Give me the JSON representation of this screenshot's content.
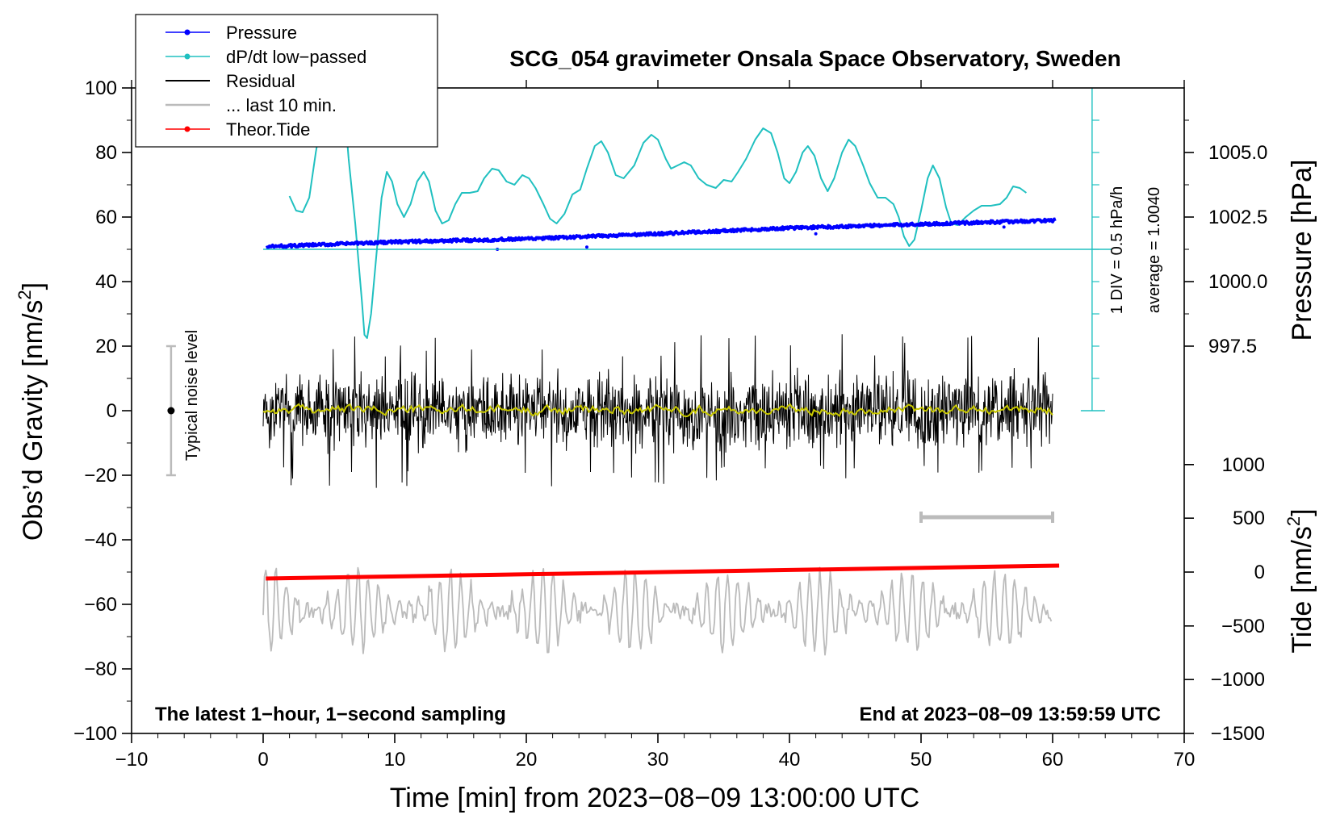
{
  "chart_data": {
    "type": "line",
    "title": "SCG_054 gravimeter Onsala Space Observatory, Sweden",
    "xlabel": "Time [min] from 2023−08−09 13:00:00 UTC",
    "ylabel_left": "Obs’d Gravity [nm/s",
    "ylabel_left_sup": "2",
    "ylabel_left_close": "]",
    "ylabel_pressure": "Pressure [hPa]",
    "ylabel_tide": "Tide [nm/s",
    "ylabel_tide_sup": "2",
    "ylabel_tide_close": "]",
    "xlim": [
      -10,
      70
    ],
    "ylim": [
      -100,
      100
    ],
    "x_ticks": [
      -10,
      0,
      10,
      20,
      30,
      40,
      50,
      60,
      70
    ],
    "x_tick_labels": [
      "−10",
      "0",
      "10",
      "20",
      "30",
      "40",
      "50",
      "60",
      "70"
    ],
    "y_ticks": [
      -100,
      -80,
      -60,
      -40,
      -20,
      0,
      20,
      40,
      60,
      80,
      100
    ],
    "y_tick_labels": [
      "−100",
      "−80",
      "−60",
      "−40",
      "−20",
      "0",
      "20",
      "40",
      "60",
      "80",
      "100"
    ],
    "pressure_axis": {
      "ticks": [
        997.5,
        1000.0,
        1002.5,
        1005.0
      ],
      "tick_labels": [
        "997.5",
        "1000.0",
        "1002.5",
        "1005.0"
      ],
      "gravity_equivalent": [
        20,
        40,
        60,
        80
      ]
    },
    "tide_axis": {
      "ticks": [
        -1500,
        -1000,
        -500,
        0,
        500,
        1000
      ],
      "tick_labels": [
        "−1500",
        "−1000",
        "−500",
        "0",
        "500",
        "1000"
      ],
      "gravity_equivalent": [
        -100,
        -83.3,
        -66.7,
        -50,
        -33.3,
        -16.7
      ]
    },
    "dpdt_scale": {
      "label_div": "1 DIV = 0.5 hPa/h",
      "label_avg": "average = 1.0040",
      "baseline": 50,
      "top": 100,
      "bottom": 0
    },
    "noise_indicator": {
      "label": "Typical noise level",
      "x": -7,
      "center": 0,
      "low": -20,
      "high": 20
    },
    "last10_marker": {
      "x_start": 50,
      "x_end": 60,
      "y": -33
    },
    "series": [
      {
        "name": "Pressure",
        "color": "#0000ff",
        "kind": "scatter-line",
        "points": [
          [
            0.3,
            50.8
          ],
          [
            10,
            52.3
          ],
          [
            20,
            53.2
          ],
          [
            30,
            54.8
          ],
          [
            40,
            56.6
          ],
          [
            50,
            57.8
          ],
          [
            60.3,
            59.0
          ]
        ]
      },
      {
        "name": "dP/dt low−passed",
        "color": "#20c0c0",
        "kind": "line",
        "points": [
          [
            2,
            66.5
          ],
          [
            2.5,
            62
          ],
          [
            3,
            61.5
          ],
          [
            3.5,
            66
          ],
          [
            4,
            80
          ],
          [
            4.5,
            92
          ],
          [
            5,
            100
          ],
          [
            5.5,
            99
          ],
          [
            6,
            94
          ],
          [
            6.3,
            88
          ],
          [
            6.5,
            78
          ],
          [
            7,
            58
          ],
          [
            7.5,
            34
          ],
          [
            7.7,
            23.5
          ],
          [
            7.9,
            22.5
          ],
          [
            8.2,
            30
          ],
          [
            8.6,
            48
          ],
          [
            9,
            66
          ],
          [
            9.4,
            74
          ],
          [
            9.8,
            71
          ],
          [
            10.2,
            64
          ],
          [
            10.7,
            60
          ],
          [
            11.2,
            64
          ],
          [
            11.7,
            71
          ],
          [
            12.2,
            74
          ],
          [
            12.6,
            71
          ],
          [
            13.1,
            62
          ],
          [
            13.6,
            58
          ],
          [
            14.1,
            59
          ],
          [
            14.6,
            64
          ],
          [
            15.1,
            67.5
          ],
          [
            15.7,
            67.5
          ],
          [
            16.3,
            68
          ],
          [
            16.8,
            72
          ],
          [
            17.4,
            75
          ],
          [
            17.9,
            74.5
          ],
          [
            18.5,
            71
          ],
          [
            19.1,
            70
          ],
          [
            19.7,
            73
          ],
          [
            20.2,
            72
          ],
          [
            20.7,
            69
          ],
          [
            21.3,
            64
          ],
          [
            21.8,
            59.5
          ],
          [
            22.3,
            58
          ],
          [
            22.9,
            61
          ],
          [
            23.5,
            67
          ],
          [
            24.1,
            68.5
          ],
          [
            24.6,
            75
          ],
          [
            25.2,
            82
          ],
          [
            25.7,
            83.5
          ],
          [
            26.2,
            80
          ],
          [
            26.8,
            73
          ],
          [
            27.4,
            72
          ],
          [
            28.2,
            76
          ],
          [
            28.9,
            83
          ],
          [
            29.5,
            85.5
          ],
          [
            30,
            84
          ],
          [
            30.6,
            78
          ],
          [
            31,
            75
          ],
          [
            31.5,
            76
          ],
          [
            32,
            77
          ],
          [
            32.5,
            76
          ],
          [
            33.1,
            72
          ],
          [
            33.7,
            70
          ],
          [
            34.4,
            69
          ],
          [
            35,
            71.5
          ],
          [
            35.6,
            71
          ],
          [
            36.1,
            74
          ],
          [
            36.7,
            78
          ],
          [
            37.4,
            84
          ],
          [
            38,
            87.5
          ],
          [
            38.6,
            86
          ],
          [
            39.1,
            80
          ],
          [
            39.6,
            72
          ],
          [
            40,
            70.5
          ],
          [
            40.5,
            74
          ],
          [
            41,
            80
          ],
          [
            41.4,
            82
          ],
          [
            41.9,
            79
          ],
          [
            42.4,
            72
          ],
          [
            42.9,
            68
          ],
          [
            43.4,
            72
          ],
          [
            44,
            80
          ],
          [
            44.5,
            84
          ],
          [
            45,
            82
          ],
          [
            45.6,
            76
          ],
          [
            46.1,
            70.5
          ],
          [
            46.7,
            66
          ],
          [
            47.3,
            66
          ],
          [
            47.9,
            64
          ],
          [
            48.3,
            60
          ],
          [
            48.7,
            54
          ],
          [
            49.1,
            51
          ],
          [
            49.5,
            53
          ],
          [
            50,
            62
          ],
          [
            50.5,
            72
          ],
          [
            50.9,
            76
          ],
          [
            51.4,
            72
          ],
          [
            51.9,
            63
          ],
          [
            52.3,
            58
          ],
          [
            52.8,
            57.5
          ],
          [
            53.4,
            60
          ],
          [
            54,
            62
          ],
          [
            54.6,
            63.5
          ],
          [
            55.3,
            63.5
          ],
          [
            56,
            64
          ],
          [
            56.5,
            66
          ],
          [
            57,
            69.5
          ],
          [
            57.5,
            69
          ],
          [
            58,
            67.5
          ]
        ]
      },
      {
        "name": "Residual",
        "color": "#000000",
        "kind": "line",
        "x_range": [
          0,
          60
        ],
        "amplitude_nm_s2": 14,
        "spike_max_nm_s2": 24
      },
      {
        "name": "... last 10 min.",
        "color": "#bbbbbb",
        "kind": "line",
        "x_range": [
          0,
          60
        ],
        "center": -62,
        "amplitude_nm_s2": 12
      },
      {
        "name": "Theor.Tide",
        "color": "#ff0000",
        "kind": "line",
        "points": [
          [
            0.2,
            -52
          ],
          [
            60.5,
            -48
          ]
        ]
      },
      {
        "name": "Residual (smoothed)",
        "color": "#c8c800",
        "kind": "line",
        "x_range": [
          0,
          60
        ],
        "center": 0.3
      }
    ],
    "legend": {
      "placement": "top-left",
      "entries": [
        "Pressure",
        "dP/dt low−passed",
        "Residual",
        "... last 10 min.",
        "Theor.Tide"
      ]
    },
    "annotations": {
      "left": "The latest 1−hour, 1−second sampling",
      "right": "End at 2023−08−09 13:59:59 UTC"
    }
  }
}
